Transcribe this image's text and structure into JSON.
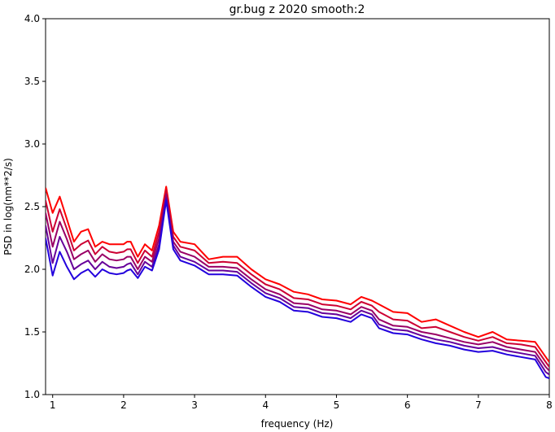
{
  "chart_data": {
    "type": "line",
    "title": "gr.bug z 2020 smooth:2",
    "xlabel": "frequency (Hz)",
    "ylabel": "PSD in log(nm**2/s)",
    "xlim": [
      0.9,
      8.0
    ],
    "ylim": [
      1.0,
      4.0
    ],
    "xticks": [
      "1",
      "2",
      "3",
      "4",
      "5",
      "6",
      "7",
      "8"
    ],
    "yticks": [
      "1.0",
      "1.5",
      "2.0",
      "2.5",
      "3.0",
      "3.5",
      "4.0"
    ],
    "grid": false,
    "x": [
      0.9,
      1.0,
      1.1,
      1.2,
      1.3,
      1.4,
      1.5,
      1.6,
      1.7,
      1.8,
      1.9,
      2.0,
      2.05,
      2.1,
      2.2,
      2.3,
      2.4,
      2.5,
      2.6,
      2.7,
      2.8,
      3.0,
      3.2,
      3.4,
      3.6,
      3.8,
      4.0,
      4.2,
      4.4,
      4.6,
      4.8,
      5.0,
      5.2,
      5.35,
      5.5,
      5.6,
      5.8,
      6.0,
      6.2,
      6.4,
      6.6,
      6.8,
      7.0,
      7.2,
      7.4,
      7.6,
      7.8,
      7.95,
      8.0
    ],
    "series": [
      {
        "color": "#ff0000",
        "values": [
          2.65,
          2.45,
          2.58,
          2.4,
          2.22,
          2.3,
          2.32,
          2.18,
          2.22,
          2.2,
          2.2,
          2.2,
          2.22,
          2.22,
          2.1,
          2.2,
          2.15,
          2.35,
          2.66,
          2.3,
          2.22,
          2.2,
          2.08,
          2.1,
          2.1,
          2.0,
          1.92,
          1.88,
          1.82,
          1.8,
          1.76,
          1.75,
          1.72,
          1.78,
          1.75,
          1.72,
          1.66,
          1.65,
          1.58,
          1.6,
          1.55,
          1.5,
          1.46,
          1.5,
          1.44,
          1.43,
          1.42,
          1.3,
          1.26
        ]
      },
      {
        "color": "#cc0033",
        "values": [
          2.55,
          2.3,
          2.48,
          2.32,
          2.15,
          2.2,
          2.23,
          2.12,
          2.18,
          2.14,
          2.13,
          2.14,
          2.16,
          2.16,
          2.05,
          2.15,
          2.1,
          2.3,
          2.63,
          2.26,
          2.18,
          2.15,
          2.05,
          2.06,
          2.05,
          1.96,
          1.88,
          1.84,
          1.77,
          1.76,
          1.72,
          1.71,
          1.68,
          1.74,
          1.71,
          1.66,
          1.6,
          1.59,
          1.53,
          1.54,
          1.5,
          1.46,
          1.43,
          1.46,
          1.41,
          1.4,
          1.38,
          1.26,
          1.22
        ]
      },
      {
        "color": "#990066",
        "values": [
          2.45,
          2.18,
          2.38,
          2.24,
          2.08,
          2.12,
          2.15,
          2.06,
          2.12,
          2.08,
          2.07,
          2.08,
          2.1,
          2.1,
          2.0,
          2.1,
          2.06,
          2.25,
          2.6,
          2.22,
          2.14,
          2.1,
          2.02,
          2.02,
          2.01,
          1.92,
          1.84,
          1.8,
          1.73,
          1.72,
          1.68,
          1.67,
          1.64,
          1.7,
          1.67,
          1.6,
          1.55,
          1.54,
          1.5,
          1.48,
          1.45,
          1.42,
          1.4,
          1.42,
          1.38,
          1.36,
          1.34,
          1.22,
          1.19
        ]
      },
      {
        "color": "#660099",
        "values": [
          2.35,
          2.05,
          2.26,
          2.14,
          2.0,
          2.04,
          2.07,
          2.0,
          2.06,
          2.02,
          2.01,
          2.02,
          2.04,
          2.05,
          1.96,
          2.06,
          2.02,
          2.2,
          2.57,
          2.19,
          2.1,
          2.06,
          1.99,
          1.99,
          1.98,
          1.89,
          1.81,
          1.77,
          1.7,
          1.69,
          1.65,
          1.64,
          1.61,
          1.67,
          1.64,
          1.56,
          1.52,
          1.51,
          1.47,
          1.44,
          1.42,
          1.39,
          1.37,
          1.38,
          1.35,
          1.33,
          1.31,
          1.18,
          1.16
        ]
      },
      {
        "color": "#2200dd",
        "values": [
          2.25,
          1.95,
          2.14,
          2.02,
          1.92,
          1.97,
          2.0,
          1.94,
          2.0,
          1.97,
          1.96,
          1.97,
          1.99,
          2.0,
          1.93,
          2.02,
          1.99,
          2.16,
          2.55,
          2.16,
          2.07,
          2.03,
          1.96,
          1.96,
          1.95,
          1.86,
          1.78,
          1.74,
          1.67,
          1.66,
          1.62,
          1.61,
          1.58,
          1.64,
          1.61,
          1.53,
          1.49,
          1.48,
          1.44,
          1.41,
          1.39,
          1.36,
          1.34,
          1.35,
          1.32,
          1.3,
          1.28,
          1.14,
          1.13
        ]
      }
    ]
  }
}
